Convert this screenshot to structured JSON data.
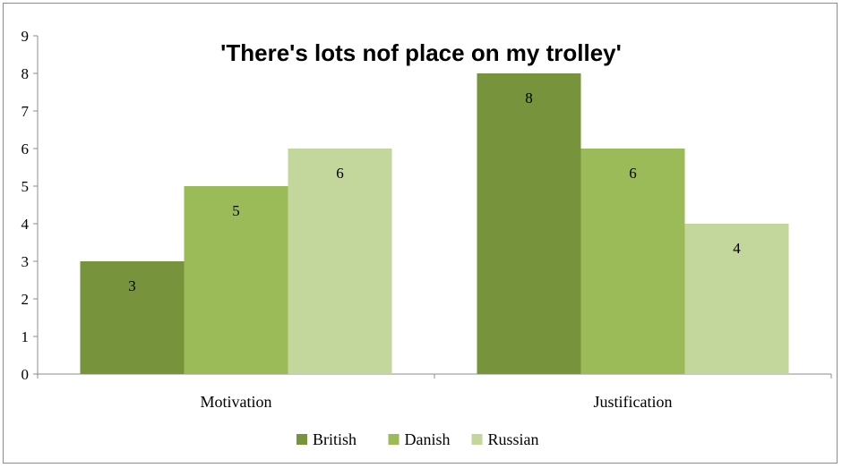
{
  "chart_data": {
    "type": "bar",
    "title": "'There's lots nof place on my trolley'",
    "categories": [
      "Motivation",
      "Justification"
    ],
    "series": [
      {
        "name": "British",
        "values": [
          3,
          8
        ],
        "color": "#77933c"
      },
      {
        "name": "Danish",
        "values": [
          5,
          6
        ],
        "color": "#9bbb59"
      },
      {
        "name": "Russian",
        "values": [
          6,
          4
        ],
        "color": "#c3d69b"
      }
    ],
    "ylim": [
      0,
      9
    ],
    "yticks": [
      "0",
      "1",
      "2",
      "3",
      "4",
      "5",
      "6",
      "7",
      "8",
      "9"
    ],
    "grid": false,
    "legend_position": "bottom",
    "data_labels": true
  }
}
